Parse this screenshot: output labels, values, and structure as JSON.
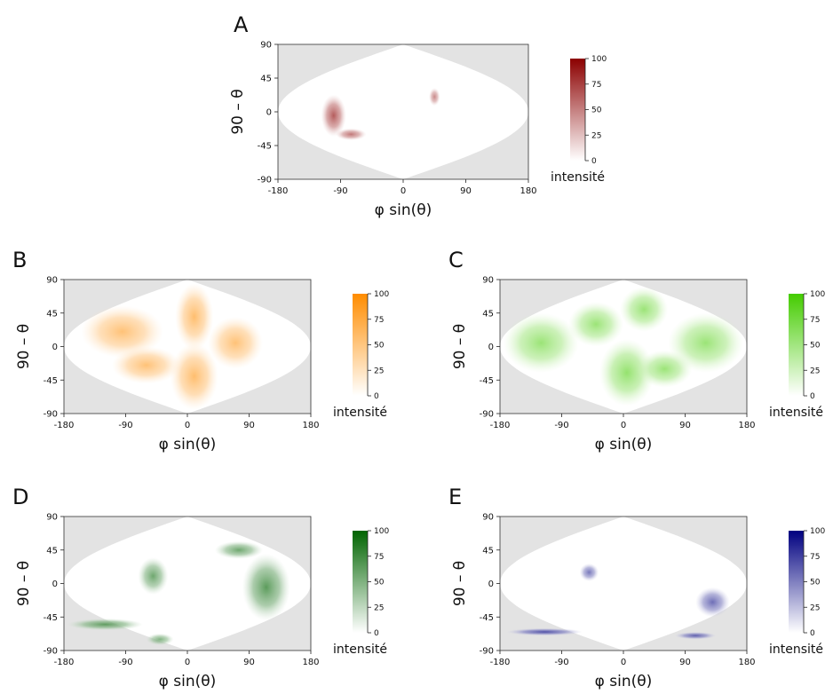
{
  "chart_data": [
    {
      "type": "heatmap",
      "panel": "A",
      "colorbar_title": "intensité",
      "colorbar_color": "#8b0000",
      "colorbar_range": [
        0,
        100
      ],
      "colorbar_ticks": [
        0,
        25,
        50,
        75,
        100
      ],
      "xlabel": "φ sin(θ)",
      "ylabel": "90 – θ",
      "xlim": [
        -180,
        180
      ],
      "ylim": [
        -90,
        90
      ],
      "xticks": [
        -180,
        -90,
        0,
        90,
        180
      ],
      "yticks": [
        -90,
        -45,
        0,
        45,
        90
      ],
      "regions": [
        {
          "x": -100,
          "y": -5,
          "rx": 18,
          "ry": 28,
          "intensity": 55
        },
        {
          "x": -75,
          "y": -30,
          "rx": 22,
          "ry": 8,
          "intensity": 40
        },
        {
          "x": 45,
          "y": 20,
          "rx": 8,
          "ry": 12,
          "intensity": 30
        }
      ]
    },
    {
      "type": "heatmap",
      "panel": "B",
      "colorbar_title": "intensité",
      "colorbar_color": "#ff8c00",
      "colorbar_range": [
        0,
        100
      ],
      "colorbar_ticks": [
        0,
        25,
        50,
        75,
        100
      ],
      "xlabel": "φ sin(θ)",
      "ylabel": "90 – θ",
      "xlim": [
        -180,
        180
      ],
      "ylim": [
        -90,
        90
      ],
      "xticks": [
        -180,
        -90,
        0,
        90,
        180
      ],
      "yticks": [
        -90,
        -45,
        0,
        45,
        90
      ],
      "regions": [
        {
          "x": -95,
          "y": 20,
          "rx": 60,
          "ry": 35,
          "intensity": 40
        },
        {
          "x": -60,
          "y": -25,
          "rx": 50,
          "ry": 25,
          "intensity": 40
        },
        {
          "x": 10,
          "y": 40,
          "rx": 28,
          "ry": 45,
          "intensity": 45
        },
        {
          "x": 10,
          "y": -40,
          "rx": 35,
          "ry": 45,
          "intensity": 45
        },
        {
          "x": 70,
          "y": 5,
          "rx": 40,
          "ry": 35,
          "intensity": 40
        }
      ]
    },
    {
      "type": "heatmap",
      "panel": "C",
      "colorbar_title": "intensité",
      "colorbar_color": "#44cc00",
      "colorbar_range": [
        0,
        100
      ],
      "colorbar_ticks": [
        0,
        25,
        50,
        75,
        100
      ],
      "xlabel": "φ sin(θ)",
      "ylabel": "90 – θ",
      "xlim": [
        -180,
        180
      ],
      "ylim": [
        -90,
        90
      ],
      "xticks": [
        -180,
        -90,
        0,
        90,
        180
      ],
      "yticks": [
        -90,
        -45,
        0,
        45,
        90
      ],
      "regions": [
        {
          "x": -120,
          "y": 5,
          "rx": 55,
          "ry": 40,
          "intensity": 40
        },
        {
          "x": -40,
          "y": 30,
          "rx": 40,
          "ry": 30,
          "intensity": 40
        },
        {
          "x": 5,
          "y": -35,
          "rx": 40,
          "ry": 45,
          "intensity": 45
        },
        {
          "x": 30,
          "y": 50,
          "rx": 35,
          "ry": 30,
          "intensity": 40
        },
        {
          "x": 120,
          "y": 5,
          "rx": 55,
          "ry": 40,
          "intensity": 40
        },
        {
          "x": 60,
          "y": -30,
          "rx": 40,
          "ry": 25,
          "intensity": 40
        }
      ]
    },
    {
      "type": "heatmap",
      "panel": "D",
      "colorbar_title": "intensité",
      "colorbar_color": "#006400",
      "colorbar_range": [
        0,
        100
      ],
      "colorbar_ticks": [
        0,
        25,
        50,
        75,
        100
      ],
      "xlabel": "φ sin(θ)",
      "ylabel": "90 – θ",
      "xlim": [
        -180,
        180
      ],
      "ylim": [
        -90,
        90
      ],
      "xticks": [
        -180,
        -90,
        0,
        90,
        180
      ],
      "yticks": [
        -90,
        -45,
        0,
        45,
        90
      ],
      "regions": [
        {
          "x": -50,
          "y": 10,
          "rx": 22,
          "ry": 25,
          "intensity": 45
        },
        {
          "x": 115,
          "y": -5,
          "rx": 35,
          "ry": 45,
          "intensity": 55
        },
        {
          "x": 75,
          "y": 45,
          "rx": 35,
          "ry": 12,
          "intensity": 45
        },
        {
          "x": -120,
          "y": -55,
          "rx": 55,
          "ry": 8,
          "intensity": 50
        },
        {
          "x": -40,
          "y": -75,
          "rx": 20,
          "ry": 8,
          "intensity": 35
        }
      ]
    },
    {
      "type": "heatmap",
      "panel": "E",
      "colorbar_title": "intensité",
      "colorbar_color": "#000080",
      "colorbar_range": [
        0,
        100
      ],
      "colorbar_ticks": [
        0,
        25,
        50,
        75,
        100
      ],
      "xlabel": "φ sin(θ)",
      "ylabel": "90 – θ",
      "xlim": [
        -180,
        180
      ],
      "ylim": [
        -90,
        90
      ],
      "xticks": [
        -180,
        -90,
        0,
        90,
        180
      ],
      "yticks": [
        -90,
        -45,
        0,
        45,
        90
      ],
      "regions": [
        {
          "x": -50,
          "y": 15,
          "rx": 14,
          "ry": 12,
          "intensity": 40
        },
        {
          "x": 130,
          "y": -25,
          "rx": 25,
          "ry": 20,
          "intensity": 45
        },
        {
          "x": -115,
          "y": -65,
          "rx": 55,
          "ry": 5,
          "intensity": 60
        },
        {
          "x": 105,
          "y": -70,
          "rx": 30,
          "ry": 5,
          "intensity": 50
        }
      ]
    }
  ]
}
